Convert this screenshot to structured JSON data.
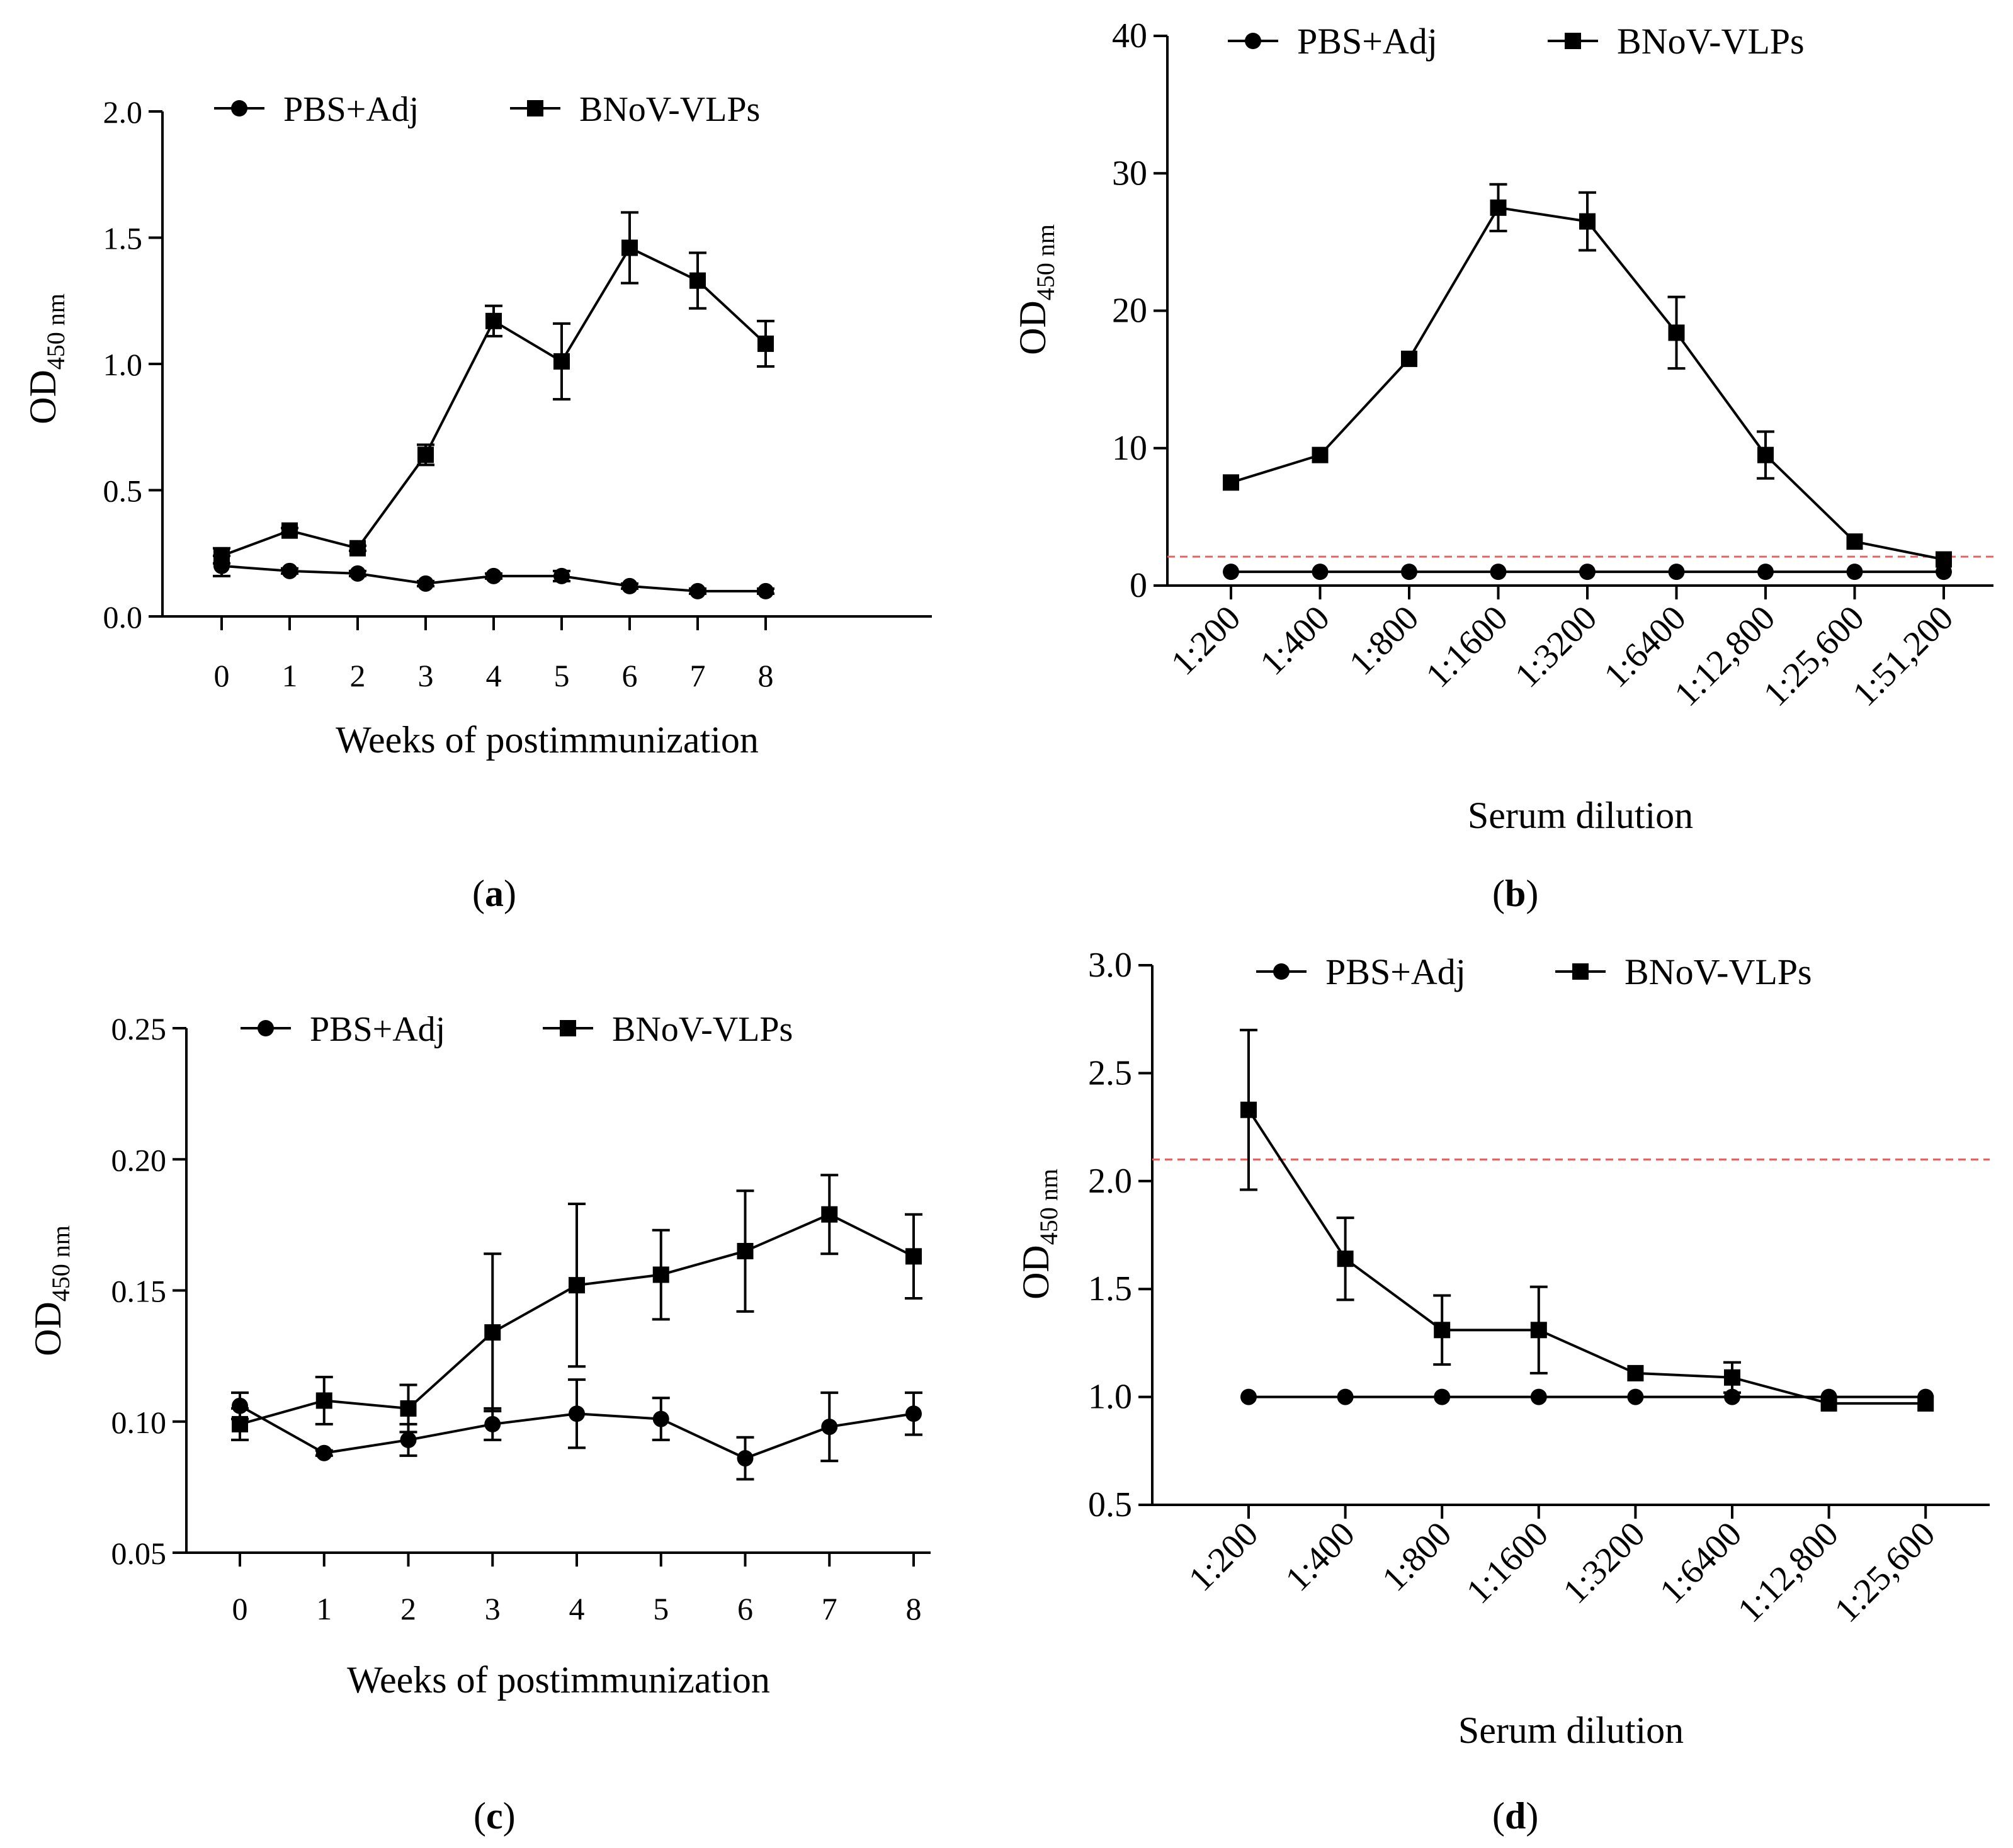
{
  "chart_data": [
    {
      "id": "a",
      "type": "line",
      "panel_label": "a",
      "title": "",
      "xlabel": "Weeks of postimmunization",
      "ylabel_main": "OD",
      "ylabel_sub": "450 nm",
      "categories": [
        "0",
        "1",
        "2",
        "3",
        "4",
        "5",
        "6",
        "7",
        "8"
      ],
      "yticks": [
        "0.0",
        "0.5",
        "1.0",
        "1.5",
        "2.0"
      ],
      "ylim": [
        0,
        2.0
      ],
      "legend": [
        "PBS+Adj",
        "BNoV-VLPs"
      ],
      "legend_position": "top",
      "grid": false,
      "series": [
        {
          "name": "PBS+Adj",
          "marker": "circle",
          "values": [
            0.2,
            0.18,
            0.17,
            0.13,
            0.16,
            0.16,
            0.12,
            0.1,
            0.1
          ],
          "errors": [
            0.04,
            0.01,
            0.01,
            0.01,
            0.01,
            0.02,
            0.01,
            0.01,
            0.01
          ]
        },
        {
          "name": "BNoV-VLPs",
          "marker": "square",
          "values": [
            0.24,
            0.34,
            0.27,
            0.64,
            1.17,
            1.01,
            1.46,
            1.33,
            1.08
          ],
          "errors": [
            0.03,
            0.01,
            0.01,
            0.04,
            0.06,
            0.15,
            0.14,
            0.11,
            0.09
          ]
        }
      ]
    },
    {
      "id": "b",
      "type": "line",
      "panel_label": "b",
      "title": "",
      "xlabel": "Serum dilution",
      "ylabel_main": "OD",
      "ylabel_sub": "450 nm",
      "categories": [
        "1:200",
        "1:400",
        "1:800",
        "1:1600",
        "1:3200",
        "1:6400",
        "1:12,800",
        "1:25,600",
        "1:51,200"
      ],
      "yticks": [
        "0",
        "10",
        "20",
        "30",
        "40"
      ],
      "ylim": [
        0,
        40
      ],
      "cutoff": 2.1,
      "legend": [
        "PBS+Adj",
        "BNoV-VLPs"
      ],
      "legend_position": "top",
      "grid": false,
      "series": [
        {
          "name": "PBS+Adj",
          "marker": "circle",
          "values": [
            1,
            1,
            1,
            1,
            1,
            1,
            1,
            1,
            1
          ],
          "errors": [
            0,
            0,
            0,
            0,
            0,
            0,
            0,
            0,
            0
          ]
        },
        {
          "name": "BNoV-VLPs",
          "marker": "square",
          "values": [
            7.5,
            9.5,
            16.5,
            27.5,
            26.5,
            18.4,
            9.5,
            3.2,
            1.9
          ],
          "errors": [
            0,
            0,
            0,
            1.7,
            2.1,
            2.6,
            1.7,
            0,
            0
          ]
        }
      ]
    },
    {
      "id": "c",
      "type": "line",
      "panel_label": "c",
      "title": "",
      "xlabel": "Weeks of postimmunization",
      "ylabel_main": "OD",
      "ylabel_sub": "450 nm",
      "categories": [
        "0",
        "1",
        "2",
        "3",
        "4",
        "5",
        "6",
        "7",
        "8"
      ],
      "yticks": [
        "0.05",
        "0.10",
        "0.15",
        "0.20",
        "0.25"
      ],
      "ylim": [
        0.05,
        0.25
      ],
      "legend": [
        "PBS+Adj",
        "BNoV-VLPs"
      ],
      "legend_position": "top",
      "grid": false,
      "series": [
        {
          "name": "PBS+Adj",
          "marker": "circle",
          "values": [
            0.106,
            0.088,
            0.093,
            0.099,
            0.103,
            0.101,
            0.086,
            0.098,
            0.103
          ],
          "errors": [
            0.005,
            0.001,
            0.006,
            0.006,
            0.013,
            0.008,
            0.008,
            0.013,
            0.008
          ]
        },
        {
          "name": "BNoV-VLPs",
          "marker": "square",
          "values": [
            0.099,
            0.108,
            0.105,
            0.134,
            0.152,
            0.156,
            0.165,
            0.179,
            0.163
          ],
          "errors": [
            0.006,
            0.009,
            0.009,
            0.03,
            0.031,
            0.017,
            0.023,
            0.015,
            0.016
          ]
        }
      ]
    },
    {
      "id": "d",
      "type": "line",
      "panel_label": "d",
      "title": "",
      "xlabel": "Serum dilution",
      "ylabel_main": "OD",
      "ylabel_sub": "450 nm",
      "categories": [
        "1:200",
        "1:400",
        "1:800",
        "1:1600",
        "1:3200",
        "1:6400",
        "1:12,800",
        "1:25,600"
      ],
      "yticks": [
        "0.5",
        "1.0",
        "1.5",
        "2.0",
        "2.5",
        "3.0"
      ],
      "ylim": [
        0.5,
        3.0
      ],
      "cutoff": 2.1,
      "legend": [
        "PBS+Adj",
        "BNoV-VLPs"
      ],
      "legend_position": "top",
      "grid": false,
      "series": [
        {
          "name": "PBS+Adj",
          "marker": "circle",
          "values": [
            1,
            1,
            1,
            1,
            1,
            1,
            1,
            1
          ],
          "errors": [
            0,
            0,
            0,
            0,
            0,
            0,
            0,
            0
          ]
        },
        {
          "name": "BNoV-VLPs",
          "marker": "square",
          "values": [
            2.33,
            1.64,
            1.31,
            1.31,
            1.11,
            1.09,
            0.97,
            0.97
          ],
          "errors": [
            0.37,
            0.19,
            0.16,
            0.2,
            0,
            0.07,
            0,
            0
          ]
        }
      ]
    }
  ],
  "colors": {
    "line": "#000000",
    "cutoff": "#e8635f"
  }
}
